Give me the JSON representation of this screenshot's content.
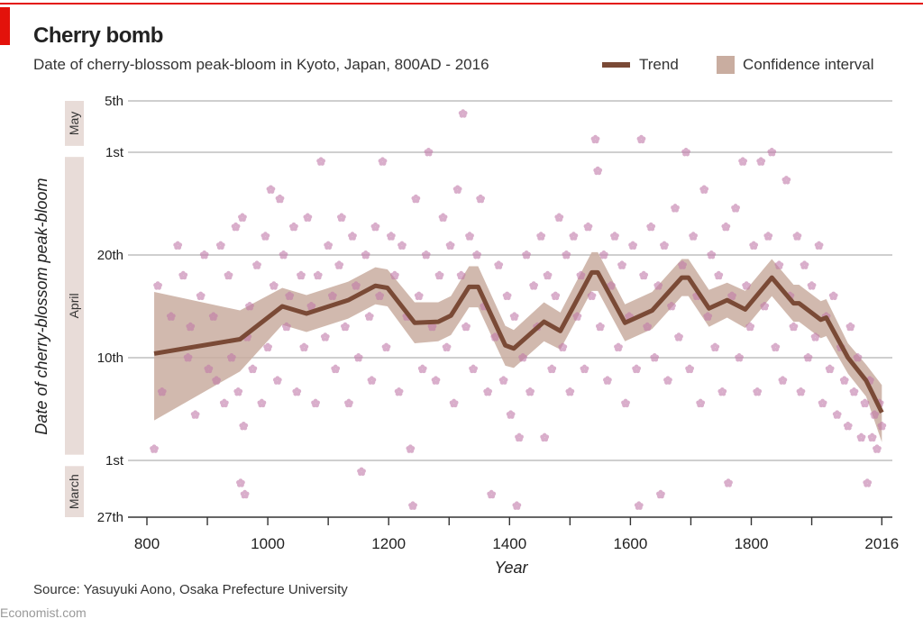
{
  "header": {
    "title": "Cherry bomb",
    "subtitle": "Date of cherry-blossom peak-bloom in Kyoto, Japan, 800AD - 2016"
  },
  "footer": {
    "source": "Source: Yasuyuki Aono, Osaka Prefecture University",
    "brand": "Economist.com"
  },
  "colors": {
    "accent": "#e3120b",
    "trend": "#7a4a36",
    "confidence": "#c9ada0",
    "points": "#c17aa9",
    "month_band": "#e8dcd8",
    "grid": "#bfbfbf"
  },
  "chart_data": {
    "type": "scatter",
    "title": "Cherry bomb",
    "subtitle": "Date of cherry-blossom peak-bloom in Kyoto, Japan, 800AD - 2016",
    "xlabel": "Year",
    "ylabel": "Date of cherry-blossom peak-bloom",
    "xlim": [
      800,
      2030
    ],
    "x_ticks": [
      800,
      1000,
      1200,
      1400,
      1600,
      1800,
      2016
    ],
    "y_unit": "day of year",
    "y_ticks": [
      {
        "day": 86,
        "label": "27th"
      },
      {
        "day": 91,
        "label": "1st"
      },
      {
        "day": 100,
        "label": "10th"
      },
      {
        "day": 110,
        "label": "20th"
      },
      {
        "day": 121,
        "label": "1st"
      },
      {
        "day": 125,
        "label": "5th"
      }
    ],
    "month_bands": [
      {
        "label": "March",
        "from": 86,
        "to": 90.5
      },
      {
        "label": "April",
        "from": 91.5,
        "to": 120.5
      },
      {
        "label": "May",
        "from": 121.5,
        "to": 125
      }
    ],
    "grid": true,
    "legend": {
      "position": "top-right",
      "entries": [
        "Trend",
        "Confidence interval"
      ]
    },
    "trend": {
      "name": "Trend",
      "points": [
        [
          812,
          100.4
        ],
        [
          954,
          101.8
        ],
        [
          1024,
          105
        ],
        [
          1064,
          104.3
        ],
        [
          1133,
          105.6
        ],
        [
          1178,
          107
        ],
        [
          1198,
          106.8
        ],
        [
          1243,
          103.4
        ],
        [
          1282,
          103.5
        ],
        [
          1303,
          104.1
        ],
        [
          1333,
          106.9
        ],
        [
          1348,
          106.9
        ],
        [
          1393,
          101.2
        ],
        [
          1407,
          100.9
        ],
        [
          1457,
          103.5
        ],
        [
          1484,
          102.6
        ],
        [
          1536,
          108.3
        ],
        [
          1546,
          108.3
        ],
        [
          1591,
          103.4
        ],
        [
          1636,
          104.6
        ],
        [
          1685,
          107.8
        ],
        [
          1696,
          107.8
        ],
        [
          1730,
          104.8
        ],
        [
          1760,
          105.6
        ],
        [
          1790,
          104.7
        ],
        [
          1834,
          107.8
        ],
        [
          1870,
          105.3
        ],
        [
          1879,
          105.3
        ],
        [
          1915,
          103.7
        ],
        [
          1924,
          103.9
        ],
        [
          1960,
          100
        ],
        [
          1990,
          98
        ],
        [
          2016,
          95.2
        ]
      ]
    },
    "confidence_interval": {
      "name": "Confidence interval",
      "lower": [
        94.5,
        98.8,
        103.2,
        102.5,
        103.8,
        105.2,
        105,
        101.4,
        101.6,
        102.2,
        104.9,
        104.9,
        99.3,
        99.1,
        101.6,
        100.8,
        106.5,
        106.5,
        101.6,
        102.8,
        106,
        106,
        103,
        103.9,
        102.9,
        106,
        103.5,
        103.5,
        101.9,
        102.1,
        98.6,
        96.6,
        92.6
      ],
      "upper": [
        106.4,
        104.6,
        106.8,
        106.1,
        107.4,
        108.8,
        108.6,
        105.4,
        105.4,
        106,
        108.9,
        108.9,
        103.1,
        102.7,
        105.4,
        104.4,
        110.3,
        110.3,
        105.2,
        106.4,
        109.6,
        109.6,
        106.6,
        107.3,
        106.5,
        109.6,
        107.1,
        107.1,
        105.5,
        105.7,
        101.4,
        99.4,
        97.6
      ]
    },
    "observations": [
      [
        812,
        92
      ],
      [
        818,
        107
      ],
      [
        825,
        97
      ],
      [
        840,
        104
      ],
      [
        851,
        111
      ],
      [
        860,
        108
      ],
      [
        868,
        100
      ],
      [
        872,
        103
      ],
      [
        880,
        95
      ],
      [
        889,
        106
      ],
      [
        895,
        110
      ],
      [
        902,
        99
      ],
      [
        910,
        104
      ],
      [
        915,
        98
      ],
      [
        922,
        111
      ],
      [
        928,
        96
      ],
      [
        935,
        108
      ],
      [
        940,
        100
      ],
      [
        947,
        113
      ],
      [
        951,
        97
      ],
      [
        955,
        89
      ],
      [
        958,
        114
      ],
      [
        960,
        94
      ],
      [
        962,
        88
      ],
      [
        966,
        102
      ],
      [
        970,
        105
      ],
      [
        975,
        99
      ],
      [
        982,
        109
      ],
      [
        990,
        96
      ],
      [
        996,
        112
      ],
      [
        1000,
        101
      ],
      [
        1005,
        117
      ],
      [
        1010,
        107
      ],
      [
        1016,
        98
      ],
      [
        1020,
        116
      ],
      [
        1026,
        110
      ],
      [
        1031,
        103
      ],
      [
        1036,
        106
      ],
      [
        1043,
        113
      ],
      [
        1048,
        97
      ],
      [
        1055,
        108
      ],
      [
        1060,
        101
      ],
      [
        1066,
        114
      ],
      [
        1072,
        105
      ],
      [
        1079,
        96
      ],
      [
        1083,
        108
      ],
      [
        1088,
        120
      ],
      [
        1095,
        102
      ],
      [
        1100,
        111
      ],
      [
        1107,
        106
      ],
      [
        1112,
        99
      ],
      [
        1118,
        109
      ],
      [
        1122,
        114
      ],
      [
        1128,
        103
      ],
      [
        1134,
        96
      ],
      [
        1140,
        112
      ],
      [
        1146,
        107
      ],
      [
        1150,
        100
      ],
      [
        1155,
        90
      ],
      [
        1162,
        110
      ],
      [
        1168,
        104
      ],
      [
        1172,
        98
      ],
      [
        1178,
        113
      ],
      [
        1185,
        106
      ],
      [
        1190,
        120
      ],
      [
        1196,
        101
      ],
      [
        1204,
        112
      ],
      [
        1210,
        108
      ],
      [
        1217,
        97
      ],
      [
        1222,
        111
      ],
      [
        1230,
        104
      ],
      [
        1236,
        92
      ],
      [
        1240,
        87
      ],
      [
        1245,
        116
      ],
      [
        1250,
        106
      ],
      [
        1256,
        99
      ],
      [
        1262,
        110
      ],
      [
        1266,
        121
      ],
      [
        1272,
        103
      ],
      [
        1278,
        98
      ],
      [
        1284,
        108
      ],
      [
        1290,
        114
      ],
      [
        1296,
        101
      ],
      [
        1302,
        111
      ],
      [
        1308,
        96
      ],
      [
        1314,
        117
      ],
      [
        1320,
        108
      ],
      [
        1323,
        124
      ],
      [
        1328,
        103
      ],
      [
        1334,
        112
      ],
      [
        1340,
        99
      ],
      [
        1346,
        110
      ],
      [
        1352,
        116
      ],
      [
        1358,
        105
      ],
      [
        1364,
        97
      ],
      [
        1370,
        88
      ],
      [
        1376,
        102
      ],
      [
        1382,
        109
      ],
      [
        1390,
        98
      ],
      [
        1396,
        106
      ],
      [
        1402,
        95
      ],
      [
        1408,
        104
      ],
      [
        1412,
        87
      ],
      [
        1416,
        93
      ],
      [
        1422,
        100
      ],
      [
        1428,
        110
      ],
      [
        1434,
        97
      ],
      [
        1440,
        107
      ],
      [
        1446,
        103
      ],
      [
        1452,
        112
      ],
      [
        1458,
        93
      ],
      [
        1463,
        108
      ],
      [
        1470,
        99
      ],
      [
        1476,
        106
      ],
      [
        1482,
        114
      ],
      [
        1488,
        101
      ],
      [
        1494,
        110
      ],
      [
        1500,
        97
      ],
      [
        1506,
        112
      ],
      [
        1512,
        104
      ],
      [
        1518,
        108
      ],
      [
        1524,
        99
      ],
      [
        1530,
        113
      ],
      [
        1536,
        106
      ],
      [
        1542,
        122
      ],
      [
        1546,
        119
      ],
      [
        1550,
        103
      ],
      [
        1556,
        110
      ],
      [
        1562,
        98
      ],
      [
        1568,
        107
      ],
      [
        1574,
        112
      ],
      [
        1580,
        101
      ],
      [
        1586,
        109
      ],
      [
        1592,
        96
      ],
      [
        1598,
        104
      ],
      [
        1604,
        111
      ],
      [
        1610,
        99
      ],
      [
        1614,
        87
      ],
      [
        1618,
        122
      ],
      [
        1622,
        108
      ],
      [
        1628,
        103
      ],
      [
        1634,
        113
      ],
      [
        1640,
        100
      ],
      [
        1646,
        107
      ],
      [
        1650,
        88
      ],
      [
        1656,
        111
      ],
      [
        1662,
        98
      ],
      [
        1668,
        105
      ],
      [
        1674,
        115
      ],
      [
        1680,
        102
      ],
      [
        1686,
        109
      ],
      [
        1692,
        121
      ],
      [
        1698,
        99
      ],
      [
        1704,
        112
      ],
      [
        1710,
        106
      ],
      [
        1716,
        96
      ],
      [
        1722,
        117
      ],
      [
        1728,
        104
      ],
      [
        1734,
        110
      ],
      [
        1740,
        101
      ],
      [
        1746,
        108
      ],
      [
        1752,
        97
      ],
      [
        1758,
        113
      ],
      [
        1762,
        89
      ],
      [
        1768,
        106
      ],
      [
        1774,
        115
      ],
      [
        1780,
        100
      ],
      [
        1786,
        120
      ],
      [
        1792,
        107
      ],
      [
        1798,
        103
      ],
      [
        1804,
        111
      ],
      [
        1810,
        97
      ],
      [
        1816,
        120
      ],
      [
        1822,
        105
      ],
      [
        1828,
        112
      ],
      [
        1834,
        121
      ],
      [
        1840,
        101
      ],
      [
        1846,
        109
      ],
      [
        1852,
        98
      ],
      [
        1858,
        118
      ],
      [
        1864,
        106
      ],
      [
        1870,
        103
      ],
      [
        1876,
        112
      ],
      [
        1882,
        97
      ],
      [
        1888,
        109
      ],
      [
        1894,
        100
      ],
      [
        1900,
        107
      ],
      [
        1906,
        102
      ],
      [
        1912,
        111
      ],
      [
        1918,
        96
      ],
      [
        1924,
        104
      ],
      [
        1930,
        99
      ],
      [
        1936,
        106
      ],
      [
        1942,
        95
      ],
      [
        1948,
        101
      ],
      [
        1954,
        98
      ],
      [
        1960,
        94
      ],
      [
        1964,
        103
      ],
      [
        1970,
        97
      ],
      [
        1976,
        100
      ],
      [
        1982,
        93
      ],
      [
        1988,
        96
      ],
      [
        1992,
        89
      ],
      [
        1996,
        98
      ],
      [
        2000,
        93
      ],
      [
        2004,
        95
      ],
      [
        2008,
        92
      ],
      [
        2012,
        96
      ],
      [
        2016,
        94
      ]
    ]
  }
}
